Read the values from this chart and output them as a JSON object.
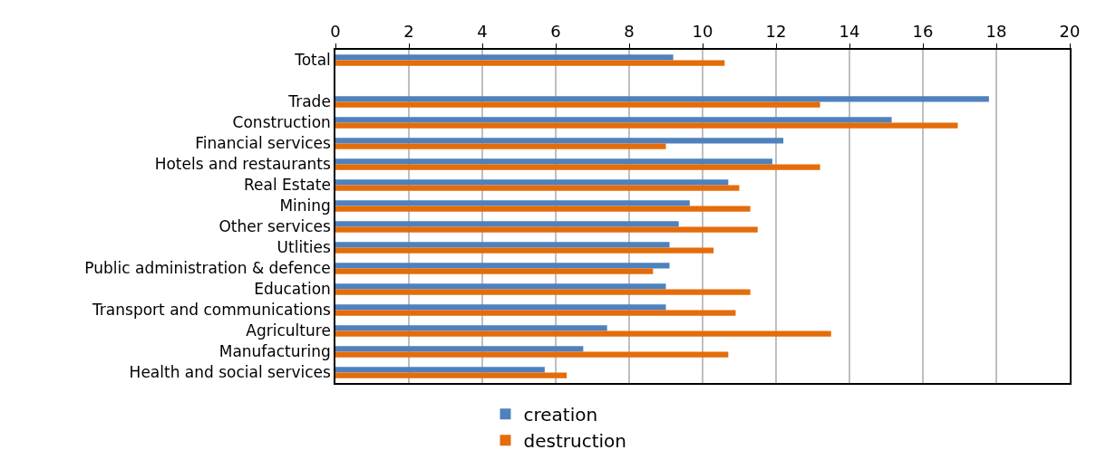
{
  "chart_data": {
    "type": "bar",
    "orientation": "horizontal",
    "categories": [
      "Total",
      null,
      "Trade",
      "Construction",
      "Financial services",
      "Hotels and restaurants",
      "Real Estate",
      "Mining",
      "Other services",
      "Utlities",
      "Public administration & defence",
      "Education",
      "Transport and communications",
      "Agriculture",
      "Manufacturing",
      "Health and social services"
    ],
    "series": [
      {
        "name": "creation",
        "color": "#4f81bd",
        "values": [
          9.2,
          null,
          17.8,
          15.15,
          12.2,
          11.9,
          10.7,
          9.65,
          9.35,
          9.1,
          9.1,
          9.0,
          9.0,
          7.4,
          6.75,
          5.7
        ]
      },
      {
        "name": "destruction",
        "color": "#e46c0a",
        "values": [
          10.6,
          null,
          13.2,
          16.95,
          9.0,
          13.2,
          11.0,
          11.3,
          11.5,
          10.3,
          8.65,
          11.3,
          10.9,
          13.5,
          10.7,
          6.3
        ]
      }
    ],
    "xlim": [
      0,
      20
    ],
    "xticks": [
      0,
      2,
      4,
      6,
      8,
      10,
      12,
      14,
      16,
      18,
      20
    ],
    "grid": "x",
    "legend": "bottom"
  }
}
